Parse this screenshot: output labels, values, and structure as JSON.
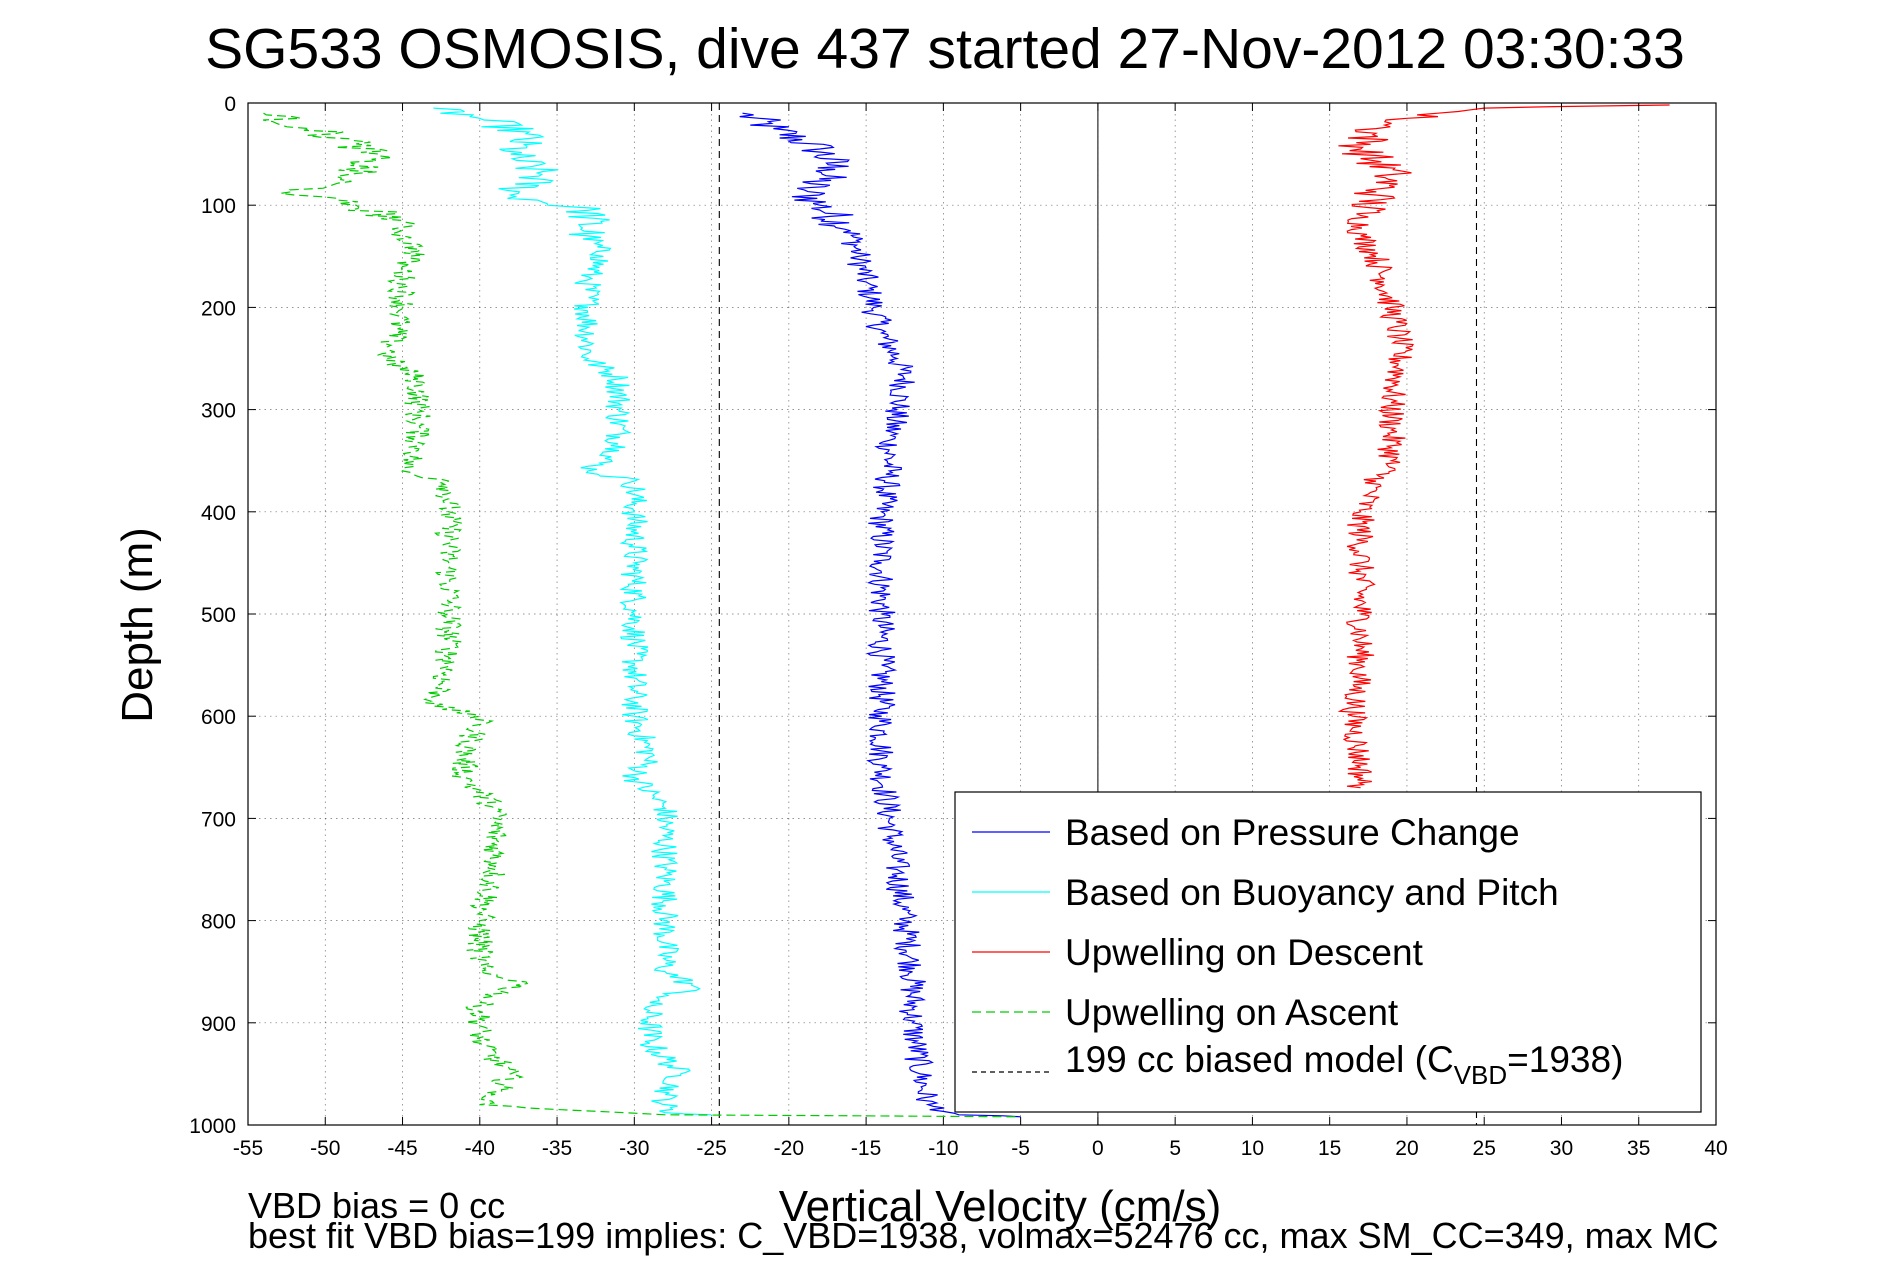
{
  "chart_data": {
    "type": "line",
    "title": "SG533 OSMOSIS, dive 437 started 27-Nov-2012 03:30:33",
    "xlabel": "Vertical Velocity (cm/s)",
    "ylabel": "Depth (m)",
    "xlim": [
      -55,
      40
    ],
    "ylim": [
      0,
      1000
    ],
    "y_reversed": true,
    "grid": true,
    "xticks": [
      -55,
      -50,
      -45,
      -40,
      -35,
      -30,
      -25,
      -20,
      -15,
      -10,
      -5,
      0,
      5,
      10,
      15,
      20,
      25,
      30,
      35,
      40
    ],
    "yticks": [
      0,
      100,
      200,
      300,
      400,
      500,
      600,
      700,
      800,
      900,
      1000
    ],
    "legend_position": "bottom-right",
    "series": [
      {
        "name": "Based on Pressure Change",
        "color": "#0000ff",
        "dash": "solid",
        "points": [
          [
            -23,
            10
          ],
          [
            -21,
            25
          ],
          [
            -18,
            45
          ],
          [
            -17,
            65
          ],
          [
            -19,
            85
          ],
          [
            -18,
            100
          ],
          [
            -16,
            125
          ],
          [
            -15.5,
            150
          ],
          [
            -15,
            175
          ],
          [
            -14.5,
            200
          ],
          [
            -14,
            225
          ],
          [
            -13,
            250
          ],
          [
            -12.5,
            270
          ],
          [
            -13,
            300
          ],
          [
            -13.5,
            330
          ],
          [
            -13.5,
            360
          ],
          [
            -14,
            400
          ],
          [
            -14,
            450
          ],
          [
            -14,
            500
          ],
          [
            -14,
            550
          ],
          [
            -14,
            600
          ],
          [
            -14,
            650
          ],
          [
            -13.5,
            700
          ],
          [
            -13,
            750
          ],
          [
            -12.5,
            800
          ],
          [
            -12,
            850
          ],
          [
            -12,
            900
          ],
          [
            -11.5,
            950
          ],
          [
            -11,
            980
          ],
          [
            -9,
            990
          ],
          [
            -5,
            992
          ]
        ]
      },
      {
        "name": "Based on Buoyancy and Pitch",
        "color": "#00ffff",
        "dash": "solid",
        "points": [
          [
            -43,
            5
          ],
          [
            -40,
            15
          ],
          [
            -37,
            30
          ],
          [
            -38,
            50
          ],
          [
            -36,
            70
          ],
          [
            -38,
            90
          ],
          [
            -33,
            105
          ],
          [
            -33,
            130
          ],
          [
            -32,
            150
          ],
          [
            -33,
            170
          ],
          [
            -33,
            200
          ],
          [
            -33,
            250
          ],
          [
            -31,
            270
          ],
          [
            -31,
            300
          ],
          [
            -31,
            340
          ],
          [
            -33,
            360
          ],
          [
            -30,
            370
          ],
          [
            -30,
            400
          ],
          [
            -30,
            450
          ],
          [
            -30,
            500
          ],
          [
            -30,
            550
          ],
          [
            -30,
            600
          ],
          [
            -29,
            640
          ],
          [
            -30,
            660
          ],
          [
            -28,
            690
          ],
          [
            -28,
            750
          ],
          [
            -28,
            800
          ],
          [
            -28,
            850
          ],
          [
            -26,
            865
          ],
          [
            -29,
            880
          ],
          [
            -29,
            920
          ],
          [
            -27,
            950
          ],
          [
            -28,
            970
          ],
          [
            -28,
            988
          ],
          [
            -25,
            990
          ]
        ]
      },
      {
        "name": "Upwelling on Descent",
        "color": "#ff0000",
        "dash": "solid",
        "points": [
          [
            37,
            2
          ],
          [
            25,
            5
          ],
          [
            22,
            10
          ],
          [
            20,
            15
          ],
          [
            18,
            25
          ],
          [
            17,
            45
          ],
          [
            19,
            70
          ],
          [
            18,
            90
          ],
          [
            17,
            110
          ],
          [
            17,
            130
          ],
          [
            18,
            150
          ],
          [
            18.5,
            175
          ],
          [
            19,
            200
          ],
          [
            19.5,
            230
          ],
          [
            19.5,
            260
          ],
          [
            19,
            290
          ],
          [
            19,
            320
          ],
          [
            19,
            350
          ],
          [
            18,
            370
          ],
          [
            17,
            400
          ],
          [
            17,
            450
          ],
          [
            17,
            500
          ],
          [
            17,
            550
          ],
          [
            16.5,
            600
          ],
          [
            17,
            650
          ],
          [
            17,
            670
          ]
        ]
      },
      {
        "name": "Upwelling on Ascent",
        "color": "#00cc00",
        "dash": "dashed",
        "points": [
          [
            -54,
            10
          ],
          [
            -51,
            25
          ],
          [
            -48,
            40
          ],
          [
            -47,
            55
          ],
          [
            -49,
            75
          ],
          [
            -52,
            90
          ],
          [
            -48,
            100
          ],
          [
            -45,
            115
          ],
          [
            -45,
            130
          ],
          [
            -44,
            145
          ],
          [
            -45,
            160
          ],
          [
            -45,
            200
          ],
          [
            -46,
            250
          ],
          [
            -44,
            270
          ],
          [
            -44,
            300
          ],
          [
            -44,
            340
          ],
          [
            -45,
            360
          ],
          [
            -42,
            370
          ],
          [
            -42,
            400
          ],
          [
            -42,
            450
          ],
          [
            -42,
            500
          ],
          [
            -42,
            550
          ],
          [
            -43,
            590
          ],
          [
            -40,
            600
          ],
          [
            -41,
            640
          ],
          [
            -41,
            660
          ],
          [
            -39,
            690
          ],
          [
            -39,
            750
          ],
          [
            -40,
            800
          ],
          [
            -40,
            850
          ],
          [
            -37,
            860
          ],
          [
            -40,
            880
          ],
          [
            -40,
            920
          ],
          [
            -38,
            950
          ],
          [
            -39,
            970
          ],
          [
            -40,
            980
          ],
          [
            -28,
            990
          ],
          [
            -5,
            992
          ]
        ]
      },
      {
        "name": "199 cc biased model (C_VBD=1938)",
        "color": "#000000",
        "dash": "dashed",
        "vertical_lines_x": [
          -24.5,
          24.5
        ]
      }
    ],
    "legend_entries": [
      "Based on Pressure Change",
      "Based on Buoyancy and Pitch",
      "Upwelling on Descent",
      "Upwelling on Ascent"
    ],
    "legend_model_text": "199 cc biased model (C",
    "legend_model_sub": "VBD",
    "legend_model_tail": "=1938)"
  },
  "footer": {
    "line1": "VBD bias = 0 cc",
    "line2": "best fit VBD bias=199 implies: C_VBD=1938, volmax=52476 cc, max SM_CC=349, max MC"
  }
}
